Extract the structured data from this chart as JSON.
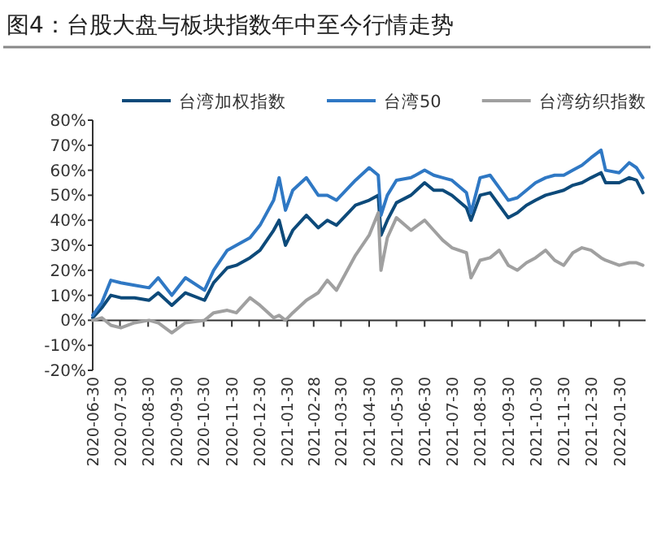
{
  "chart_data": {
    "type": "line",
    "title": "图4：台股大盘与板块指数年中至今行情走势",
    "x": [
      "2020-06-30",
      "2020-07-10",
      "2020-07-20",
      "2020-07-31",
      "2020-08-15",
      "2020-08-31",
      "2020-09-10",
      "2020-09-25",
      "2020-10-10",
      "2020-10-31",
      "2020-11-10",
      "2020-11-25",
      "2020-12-05",
      "2020-12-20",
      "2020-12-31",
      "2021-01-15",
      "2021-01-21",
      "2021-01-28",
      "2021-02-05",
      "2021-02-20",
      "2021-03-05",
      "2021-03-15",
      "2021-03-25",
      "2021-04-15",
      "2021-04-30",
      "2021-05-10",
      "2021-05-13",
      "2021-05-20",
      "2021-05-30",
      "2021-06-15",
      "2021-06-30",
      "2021-07-10",
      "2021-07-20",
      "2021-07-30",
      "2021-08-15",
      "2021-08-20",
      "2021-08-30",
      "2021-09-10",
      "2021-09-20",
      "2021-09-30",
      "2021-10-10",
      "2021-10-20",
      "2021-10-30",
      "2021-11-10",
      "2021-11-20",
      "2021-11-30",
      "2021-12-10",
      "2021-12-20",
      "2021-12-30",
      "2022-01-10",
      "2022-01-15",
      "2022-01-30",
      "2022-02-10",
      "2022-02-18",
      "2022-02-25"
    ],
    "series": [
      {
        "name": "台湾加权指数",
        "color": "#0d4a7a",
        "values": [
          1,
          5,
          10,
          9,
          9,
          8,
          11,
          6,
          11,
          8,
          15,
          21,
          22,
          25,
          28,
          36,
          40,
          30,
          36,
          42,
          37,
          40,
          38,
          46,
          48,
          50,
          34,
          40,
          47,
          50,
          55,
          52,
          52,
          50,
          45,
          40,
          50,
          51,
          46,
          41,
          43,
          46,
          48,
          50,
          51,
          52,
          54,
          55,
          57,
          59,
          55,
          55,
          57,
          56,
          51
        ]
      },
      {
        "name": "台湾50",
        "color": "#2f78c4",
        "values": [
          2,
          7,
          16,
          15,
          14,
          13,
          17,
          10,
          17,
          12,
          20,
          28,
          30,
          33,
          38,
          48,
          57,
          44,
          52,
          57,
          50,
          50,
          48,
          56,
          61,
          58,
          42,
          50,
          56,
          57,
          60,
          58,
          57,
          56,
          51,
          43,
          57,
          58,
          53,
          48,
          49,
          52,
          55,
          57,
          58,
          58,
          60,
          62,
          65,
          68,
          60,
          59,
          63,
          61,
          57
        ]
      },
      {
        "name": "台湾纺织指数",
        "color": "#a0a0a0",
        "values": [
          0,
          1,
          -2,
          -3,
          -1,
          0,
          -1,
          -5,
          -1,
          0,
          3,
          4,
          3,
          9,
          6,
          1,
          2,
          0,
          3,
          8,
          11,
          16,
          12,
          26,
          34,
          43,
          20,
          33,
          41,
          36,
          40,
          36,
          32,
          29,
          27,
          17,
          24,
          25,
          28,
          22,
          20,
          23,
          25,
          28,
          24,
          22,
          27,
          29,
          28,
          25,
          24,
          22,
          23,
          23,
          22
        ]
      }
    ],
    "xlim": [
      "2020-06-30",
      "2022-02-28"
    ],
    "xticks": [
      "2020-06-30",
      "2020-07-30",
      "2020-08-30",
      "2020-09-30",
      "2020-10-30",
      "2020-11-30",
      "2020-12-30",
      "2021-01-30",
      "2021-02-28",
      "2021-03-30",
      "2021-04-30",
      "2021-05-30",
      "2021-06-30",
      "2021-07-30",
      "2021-08-30",
      "2021-09-30",
      "2021-10-30",
      "2021-11-30",
      "2021-12-30",
      "2022-01-30"
    ],
    "ylim": [
      -20,
      80
    ],
    "yticks": [
      {
        "value": -20,
        "label": "-20%"
      },
      {
        "value": -10,
        "label": "-10%"
      },
      {
        "value": 0,
        "label": "0%"
      },
      {
        "value": 10,
        "label": "10%"
      },
      {
        "value": 20,
        "label": "20%"
      },
      {
        "value": 30,
        "label": "30%"
      },
      {
        "value": 40,
        "label": "40%"
      },
      {
        "value": 50,
        "label": "50%"
      },
      {
        "value": 60,
        "label": "60%"
      },
      {
        "value": 70,
        "label": "70%"
      },
      {
        "value": 80,
        "label": "80%"
      }
    ],
    "legend": "top",
    "marker": "none",
    "line_style": "solid"
  }
}
